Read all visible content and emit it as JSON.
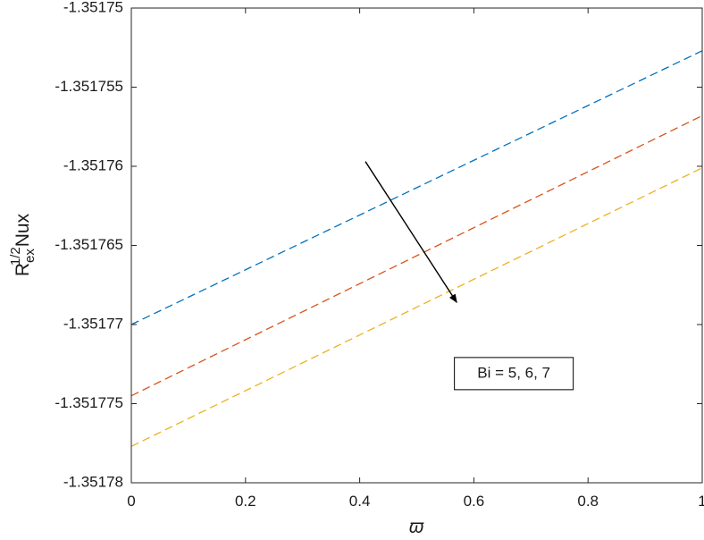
{
  "chart_data": {
    "type": "line",
    "title": "",
    "xlabel": "ϖ",
    "ylabel": {
      "base1": "R",
      "sub1": "ex",
      "sup1": "1/2",
      "base2": "Nux"
    },
    "xlim": [
      0,
      1
    ],
    "ylim": [
      -1.35178,
      -1.35175
    ],
    "x_ticks": [
      0,
      0.2,
      0.4,
      0.6,
      0.8,
      1
    ],
    "x_tick_labels": [
      "0",
      "0.2",
      "0.4",
      "0.6",
      "0.8",
      "1"
    ],
    "y_ticks": [
      -1.35178,
      -1.351775,
      -1.35177,
      -1.351765,
      -1.35176,
      -1.351755,
      -1.35175
    ],
    "y_tick_labels": [
      "-1.35178",
      "-1.351775",
      "-1.35177",
      "-1.351765",
      "-1.35176",
      "-1.351755",
      "-1.35175"
    ],
    "grid": false,
    "box": true,
    "x": [
      0,
      1
    ],
    "series": [
      {
        "values": [
          -1.35177,
          -1.3517527
        ],
        "color": "#0072BD",
        "line_style": "dashed"
      },
      {
        "values": [
          -1.3517745,
          -1.3517568
        ],
        "color": "#D95319",
        "line_style": "dashed"
      },
      {
        "values": [
          -1.3517777,
          -1.3517601
        ],
        "color": "#EDB120",
        "line_style": "dashed"
      }
    ],
    "annotations": [
      {
        "type": "arrow",
        "from": [
          0.41,
          -1.3517597
        ],
        "to": [
          0.57,
          -1.3517686
        ],
        "color": "#000000",
        "meaning": "direction of increasing Bi"
      },
      {
        "type": "textbox",
        "text": "Bi = 5, 6, 7",
        "x": 0.67,
        "y": -1.3517731
      }
    ]
  }
}
